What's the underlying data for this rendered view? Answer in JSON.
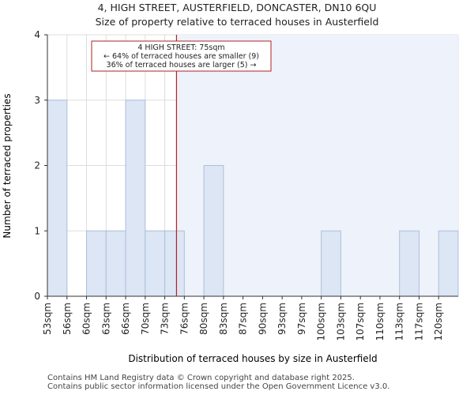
{
  "chart_data": {
    "type": "bar",
    "title": "4, HIGH STREET, AUSTERFIELD, DONCASTER, DN10 6QU",
    "subtitle": "Size of property relative to terraced houses in Austerfield",
    "xlabel": "Distribution of terraced houses by size in Austerfield",
    "ylabel": "Number of terraced properties",
    "categories": [
      "53sqm",
      "56sqm",
      "60sqm",
      "63sqm",
      "66sqm",
      "70sqm",
      "73sqm",
      "76sqm",
      "80sqm",
      "83sqm",
      "87sqm",
      "90sqm",
      "93sqm",
      "97sqm",
      "100sqm",
      "103sqm",
      "107sqm",
      "110sqm",
      "113sqm",
      "117sqm",
      "120sqm"
    ],
    "values": [
      3,
      0,
      1,
      1,
      3,
      1,
      1,
      0,
      2,
      0,
      0,
      0,
      0,
      0,
      1,
      0,
      0,
      0,
      1,
      0,
      1
    ],
    "ylim": [
      0,
      4
    ],
    "yticks": [
      "0",
      "1",
      "2",
      "3",
      "4"
    ],
    "grid": true,
    "highlight": {
      "bins_before_marker": 6.6
    },
    "annotation": {
      "line1": "4 HIGH STREET: 75sqm",
      "line2": "← 64% of terraced houses are smaller (9)",
      "line3": "36% of terraced houses are larger (5) →"
    },
    "colors": {
      "bar_fill": "#dce6f4",
      "bar_stroke": "#aebfdb",
      "shade": "#eef2fa",
      "marker": "#b22222",
      "grid": "#dddddd"
    }
  },
  "footer": {
    "line1": "Contains HM Land Registry data © Crown copyright and database right 2025.",
    "line2": "Contains public sector information licensed under the Open Government Licence v3.0."
  }
}
